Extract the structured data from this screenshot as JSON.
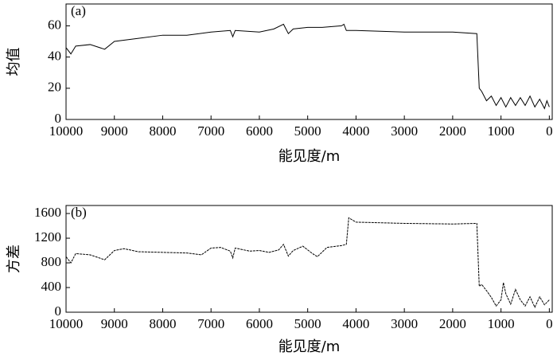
{
  "chart_data": [
    {
      "type": "line",
      "annotation": "(a)",
      "ylabel": "均值",
      "xlabel": "能见度/m",
      "xlim": [
        10000,
        -60
      ],
      "ylim": [
        0,
        74
      ],
      "xticks": [
        10000,
        9000,
        8000,
        7000,
        6000,
        5000,
        4000,
        3000,
        2000,
        1000,
        0
      ],
      "yticks": [
        0,
        20,
        40,
        60
      ],
      "series": [
        {
          "name": "均值",
          "color": "#000000",
          "x": [
            10000,
            9900,
            9800,
            9500,
            9200,
            9000,
            8500,
            8000,
            7500,
            7000,
            6600,
            6550,
            6500,
            6000,
            5700,
            5500,
            5400,
            5300,
            5000,
            4700,
            4300,
            4250,
            4200,
            4000,
            3000,
            2000,
            1500,
            1450,
            1400,
            1300,
            1200,
            1100,
            1000,
            900,
            800,
            700,
            600,
            500,
            400,
            300,
            200,
            100,
            50,
            0
          ],
          "values": [
            46,
            42,
            47,
            48,
            45,
            50,
            52,
            54,
            54,
            56,
            57,
            53,
            57,
            56,
            58,
            61,
            55,
            58,
            59,
            59,
            60,
            61,
            57,
            57,
            56,
            56,
            55,
            20,
            18,
            12,
            15,
            9,
            14,
            8,
            14,
            9,
            14,
            9,
            15,
            8,
            13,
            7,
            12,
            8
          ]
        }
      ]
    },
    {
      "type": "line",
      "annotation": "(b)",
      "ylabel": "方差",
      "xlabel": "能见度/m",
      "xlim": [
        10000,
        -60
      ],
      "ylim": [
        0,
        1730
      ],
      "xticks": [
        10000,
        9000,
        8000,
        7000,
        6000,
        5000,
        4000,
        3000,
        2000,
        1000,
        0
      ],
      "yticks": [
        0,
        400,
        800,
        1200,
        1600
      ],
      "series": [
        {
          "name": "方差",
          "color": "#000000",
          "x": [
            10000,
            9900,
            9800,
            9500,
            9200,
            9000,
            8800,
            8500,
            8000,
            7500,
            7200,
            7000,
            6800,
            6600,
            6550,
            6500,
            6200,
            6000,
            5800,
            5600,
            5500,
            5400,
            5300,
            5100,
            4900,
            4800,
            4600,
            4300,
            4200,
            4150,
            4000,
            3000,
            2000,
            1500,
            1450,
            1400,
            1300,
            1200,
            1100,
            1000,
            950,
            900,
            800,
            700,
            600,
            500,
            400,
            300,
            200,
            100,
            0
          ],
          "values": [
            900,
            800,
            950,
            930,
            850,
            1000,
            1030,
            980,
            970,
            960,
            930,
            1040,
            1050,
            990,
            880,
            1040,
            990,
            1000,
            970,
            1010,
            1100,
            910,
            1000,
            1070,
            950,
            900,
            1050,
            1080,
            1100,
            1530,
            1460,
            1440,
            1430,
            1440,
            420,
            450,
            350,
            240,
            100,
            200,
            480,
            300,
            130,
            370,
            200,
            100,
            250,
            80,
            250,
            120,
            200
          ]
        }
      ]
    }
  ]
}
